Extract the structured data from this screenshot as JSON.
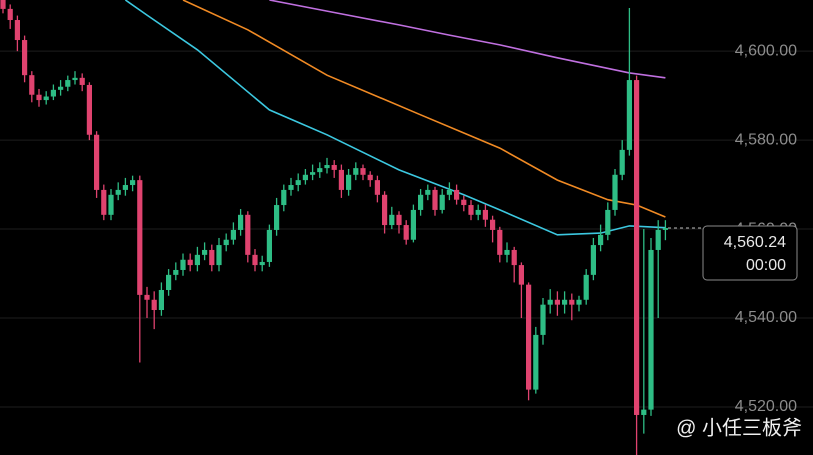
{
  "chart_data": {
    "type": "candlestick",
    "ylim": [
      4509.2,
      4611.5
    ],
    "yticks": [
      {
        "value": 4520,
        "label": "4,520.00"
      },
      {
        "value": 4540,
        "label": "4,540.00"
      },
      {
        "value": 4560,
        "label": "4,560.00"
      },
      {
        "value": 4580,
        "label": "4,580.00"
      },
      {
        "value": 4600,
        "label": "4,600.00"
      }
    ],
    "grid": true,
    "up_color": "#2ebd85",
    "down_color": "#e0436f",
    "open": [
      4612,
      4609.5,
      4607,
      4602.5,
      4594.6,
      4590.2,
      4589,
      4589.8,
      4591.3,
      4592,
      4593.5,
      4594,
      4592.4,
      4581.2,
      4568.8,
      4563.2,
      4567.7,
      4568.8,
      4569.9,
      4571,
      4545.2,
      4544.1,
      4541.8,
      4546.3,
      4549.7,
      4550.8,
      4553.1,
      4551.9,
      4554.2,
      4555.3,
      4551.9,
      4556.4,
      4557.6,
      4559.8,
      4563.2,
      4554.2,
      4551.9,
      4552.6,
      4559.8,
      4565.4,
      4568.8,
      4569.9,
      4571,
      4572.2,
      4572.8,
      4573.7,
      4574.4,
      4573.3,
      4568.8,
      4572.2,
      4573.7,
      4572.2,
      4571,
      4567.7,
      4560.9,
      4563.2,
      4560.9,
      4557.6,
      4564.3,
      4567.7,
      4568.8,
      4564.3,
      4567.7,
      4568.8,
      4566.6,
      4565.4,
      4563.2,
      4564.3,
      4562.1,
      4559.8,
      4554.2,
      4555.3,
      4551.9,
      4547.5,
      4523.9,
      4536.2,
      4543,
      4544.1,
      4543,
      4544.1,
      4543,
      4544.1,
      4549.7,
      4556.4,
      4558.7,
      4564.3,
      4572.2,
      4577.8,
      4593.5,
      4518.2,
      4519.4,
      4555.3,
      4559.8
    ],
    "high": [
      4613.5,
      4610.5,
      4608,
      4603.5,
      4595.5,
      4591.5,
      4591,
      4592.5,
      4593.5,
      4594.5,
      4595.5,
      4595,
      4593,
      4582,
      4570,
      4569,
      4570.5,
      4571.5,
      4572,
      4572,
      4547,
      4546,
      4548,
      4551,
      4552.5,
      4554.5,
      4554.5,
      4556,
      4557,
      4556.5,
      4558,
      4559,
      4561.5,
      4564.5,
      4564,
      4555.5,
      4554,
      4561,
      4567,
      4570,
      4571.5,
      4572.5,
      4573.5,
      4574.5,
      4575,
      4576,
      4575.5,
      4574.5,
      4573.5,
      4575,
      4574.5,
      4573,
      4572,
      4568.5,
      4565,
      4564,
      4562,
      4565.5,
      4569,
      4570,
      4569.5,
      4569,
      4570.5,
      4570,
      4567.5,
      4566.5,
      4565.5,
      4565.5,
      4563,
      4560.5,
      4557,
      4556,
      4552.5,
      4548,
      4538,
      4544.5,
      4546.5,
      4546,
      4546,
      4545.5,
      4545,
      4551,
      4558,
      4561,
      4566,
      4573.5,
      4580,
      4609.7,
      4594.5,
      4560,
      4558,
      4562,
      4562
    ],
    "low": [
      4608.5,
      4605,
      4600,
      4593,
      4588.5,
      4587.5,
      4588,
      4589,
      4590,
      4591,
      4592.5,
      4591,
      4580,
      4567,
      4562,
      4562,
      4566.5,
      4567.5,
      4568.5,
      4530,
      4540,
      4537.5,
      4540.5,
      4545,
      4548.5,
      4549.5,
      4550.5,
      4550.5,
      4553,
      4550.5,
      4550.5,
      4555,
      4556.5,
      4558.5,
      4552.5,
      4550.5,
      4550.5,
      4551.5,
      4558.5,
      4564,
      4567.5,
      4568.5,
      4570,
      4571,
      4571.5,
      4572.5,
      4571.5,
      4567,
      4567.5,
      4571,
      4571,
      4569.5,
      4566,
      4559,
      4560,
      4559,
      4556.5,
      4557,
      4563,
      4566.5,
      4563,
      4563.5,
      4566.5,
      4565.5,
      4564,
      4562,
      4562,
      4560.5,
      4557,
      4552.5,
      4552.5,
      4548,
      4540,
      4521.5,
      4523,
      4534,
      4541,
      4540.5,
      4541,
      4539.5,
      4541.5,
      4543,
      4548.5,
      4555,
      4557.5,
      4563,
      4571,
      4576.5,
      4509.2,
      4514,
      4518,
      4540,
      4557.5
    ],
    "close": [
      4609.5,
      4607,
      4602.5,
      4594.6,
      4590.2,
      4589,
      4589.8,
      4591.3,
      4592,
      4593.5,
      4594,
      4592.4,
      4581.2,
      4568.8,
      4563.2,
      4567.7,
      4568.8,
      4569.9,
      4571,
      4545.2,
      4544.1,
      4541.8,
      4546.3,
      4549.7,
      4550.8,
      4553.1,
      4551.9,
      4554.2,
      4555.3,
      4551.9,
      4556.4,
      4557.6,
      4559.8,
      4563.2,
      4554.2,
      4551.9,
      4552.6,
      4559.8,
      4565.4,
      4568.8,
      4569.9,
      4571,
      4572.2,
      4572.8,
      4573.7,
      4574.4,
      4573.3,
      4568.8,
      4572.2,
      4573.7,
      4572.2,
      4571,
      4567.7,
      4560.9,
      4563.2,
      4560.9,
      4557.6,
      4564.3,
      4567.7,
      4568.8,
      4564.3,
      4567.7,
      4568.8,
      4566.6,
      4565.4,
      4563.2,
      4564.3,
      4562.1,
      4559.8,
      4554.2,
      4555.3,
      4551.9,
      4547.5,
      4523.9,
      4536.2,
      4543,
      4544.1,
      4543,
      4544.1,
      4543,
      4544.1,
      4549.7,
      4556.4,
      4558.7,
      4564.3,
      4572.2,
      4577.8,
      4593.5,
      4518.2,
      4519.4,
      4555.3,
      4559.8,
      4560.24
    ],
    "lines": [
      {
        "color": "#c070e0",
        "x": [
          37,
          45,
          55,
          62,
          69,
          77,
          87,
          92
        ],
        "values": [
          4611.5,
          4609,
          4605.9,
          4603.6,
          4601.4,
          4598.5,
          4595.1,
          4594.0
        ]
      },
      {
        "color": "#f08a24",
        "x": [
          25,
          34,
          45,
          58,
          69,
          77,
          84,
          88,
          92
        ],
        "values": [
          4611.5,
          4604.8,
          4594.6,
          4585.7,
          4578.2,
          4571,
          4566.6,
          4565.4,
          4562.7
        ]
      },
      {
        "color": "#3cc8e0",
        "x": [
          17,
          20,
          27,
          37,
          45,
          55,
          64,
          69,
          77,
          83,
          87,
          92
        ],
        "values": [
          4611.5,
          4608.1,
          4600.3,
          4586.8,
          4581.2,
          4573.3,
          4567.7,
          4564.3,
          4558.7,
          4559.1,
          4560.7,
          4560.3
        ]
      }
    ],
    "last_price": {
      "value": 4560.24,
      "label": "4,560.24"
    },
    "countdown": "00:00",
    "watermark": "@ 小任三板斧"
  }
}
